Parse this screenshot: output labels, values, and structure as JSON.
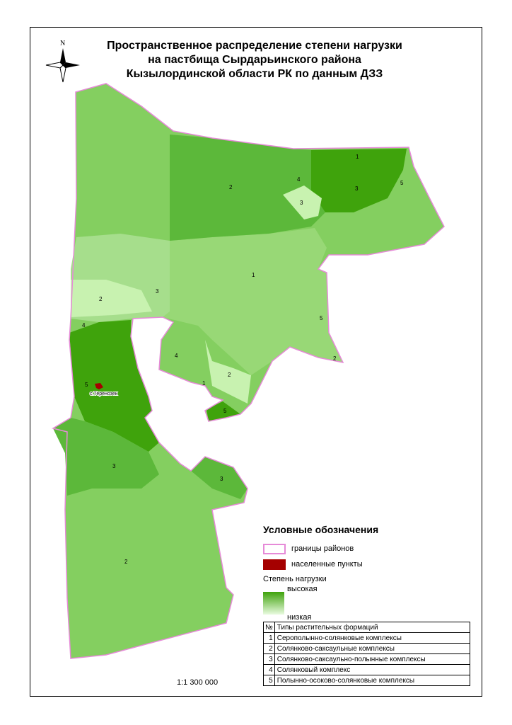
{
  "title": [
    "Пространственное распределение степени нагрузки",
    "на пастбища Сырдарьинского района",
    "Кызылординской области РК по данным ДЗЗ"
  ],
  "north_label": "N",
  "settlement": "с.Теренозек",
  "region_labels": [
    "1",
    "2",
    "3",
    "4",
    "5"
  ],
  "legend": {
    "heading": "Условные обозначения",
    "boundary": "границы районов",
    "settlements": "населенные пункты",
    "load_title": "Степень нагрузки",
    "high": "высокая",
    "low": "низкая"
  },
  "table": {
    "headers": [
      "№",
      "Типы растительных формаций"
    ],
    "rows": [
      [
        "1",
        "Серополынно-солянковые комплексы"
      ],
      [
        "2",
        "Солянково-саксаульные комплексы"
      ],
      [
        "3",
        "Солянково-саксаульно-полынные комплексы"
      ],
      [
        "4",
        "Солянковый комплекс"
      ],
      [
        "5",
        "Полынно-осоково-солянковые комплексы"
      ]
    ]
  },
  "scale": "1:1 300 000",
  "colors": {
    "boundary": "#e68ad8",
    "settlement": "#a50000",
    "high": "#3fa30c",
    "low": "#e9fbe0"
  }
}
